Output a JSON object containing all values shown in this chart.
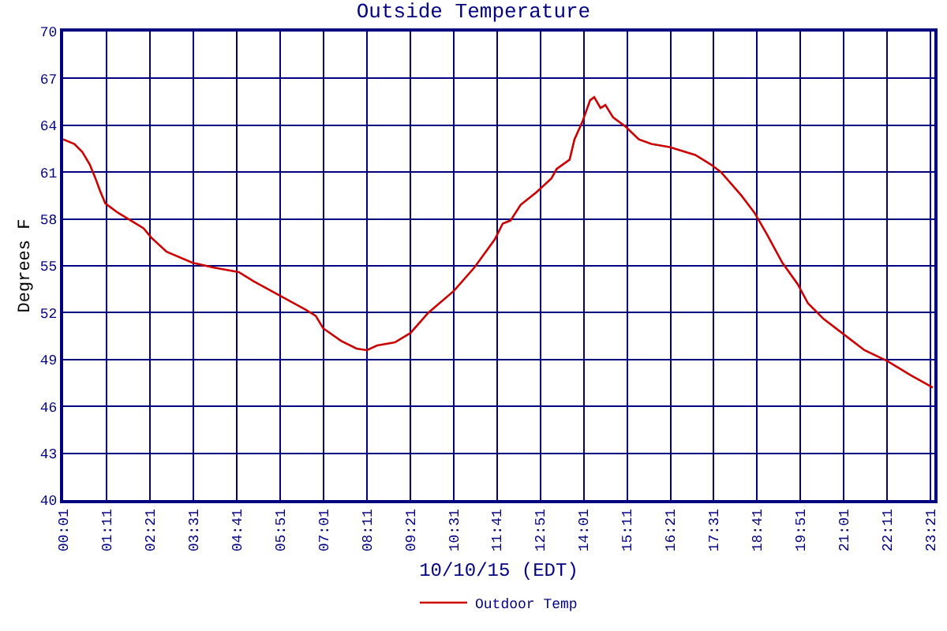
{
  "chart_data": {
    "type": "line",
    "title": "Outside Temperature",
    "xlabel": "10/10/15 (EDT)",
    "ylabel": "Degrees F",
    "x": [
      0.0167,
      0.32,
      0.53,
      0.73,
      0.87,
      1.01,
      1.15,
      1.49,
      1.84,
      2.18,
      2.39,
      2.8,
      3.49,
      4.04,
      4.74,
      5.15,
      5.84,
      6.53,
      6.81,
      7.01,
      7.49,
      7.91,
      8.19,
      8.46,
      8.94,
      9.36,
      9.84,
      10.53,
      11.08,
      11.63,
      11.84,
      12.05,
      12.32,
      12.74,
      13.15,
      13.29,
      13.64,
      13.77,
      13.98,
      14.19,
      14.3,
      14.47,
      14.6,
      14.81,
      15.15,
      15.5,
      15.84,
      16.33,
      17.02,
      17.43,
      17.71,
      18.26,
      18.61,
      18.95,
      19.36,
      19.78,
      20.05,
      20.47,
      21.02,
      21.57,
      22.19,
      22.81,
      23.41
    ],
    "series": [
      {
        "name": "Outdoor Temp",
        "color": "#cc0000",
        "values": [
          63.1,
          62.8,
          62.3,
          61.5,
          60.7,
          59.8,
          59.0,
          58.4,
          57.9,
          57.4,
          56.8,
          55.9,
          55.2,
          54.9,
          54.6,
          54.0,
          53.1,
          52.2,
          51.8,
          51.0,
          50.2,
          49.7,
          49.6,
          49.9,
          50.1,
          50.7,
          52.0,
          53.4,
          54.9,
          56.7,
          57.7,
          57.9,
          58.9,
          59.7,
          60.6,
          61.2,
          61.8,
          63.1,
          64.2,
          65.6,
          65.8,
          65.1,
          65.3,
          64.5,
          63.9,
          63.1,
          62.8,
          62.6,
          62.1,
          61.5,
          61.0,
          59.5,
          58.4,
          57.0,
          55.2,
          53.8,
          52.6,
          51.6,
          50.6,
          49.6,
          48.9,
          48.0,
          47.2
        ]
      }
    ],
    "xlim": [
      0.0167,
      23.45
    ],
    "xticks": [
      {
        "value": 0.0167,
        "label": "00:01"
      },
      {
        "value": 1.1833,
        "label": "01:11"
      },
      {
        "value": 2.35,
        "label": "02:21"
      },
      {
        "value": 3.5167,
        "label": "03:31"
      },
      {
        "value": 4.6833,
        "label": "04:41"
      },
      {
        "value": 5.85,
        "label": "05:51"
      },
      {
        "value": 7.0167,
        "label": "07:01"
      },
      {
        "value": 8.1833,
        "label": "08:11"
      },
      {
        "value": 9.35,
        "label": "09:21"
      },
      {
        "value": 10.5167,
        "label": "10:31"
      },
      {
        "value": 11.6833,
        "label": "11:41"
      },
      {
        "value": 12.85,
        "label": "12:51"
      },
      {
        "value": 14.0167,
        "label": "14:01"
      },
      {
        "value": 15.1833,
        "label": "15:11"
      },
      {
        "value": 16.35,
        "label": "16:21"
      },
      {
        "value": 17.5167,
        "label": "17:31"
      },
      {
        "value": 18.6833,
        "label": "18:41"
      },
      {
        "value": 19.85,
        "label": "19:51"
      },
      {
        "value": 21.0167,
        "label": "21:01"
      },
      {
        "value": 22.1833,
        "label": "22:11"
      },
      {
        "value": 23.35,
        "label": "23:21"
      }
    ],
    "ylim": [
      40,
      70
    ],
    "yticks": [
      40,
      43,
      46,
      49,
      52,
      55,
      58,
      61,
      64,
      67,
      70
    ],
    "grid": true,
    "legend": "bottom",
    "marker": "none",
    "line_style": "solid"
  }
}
